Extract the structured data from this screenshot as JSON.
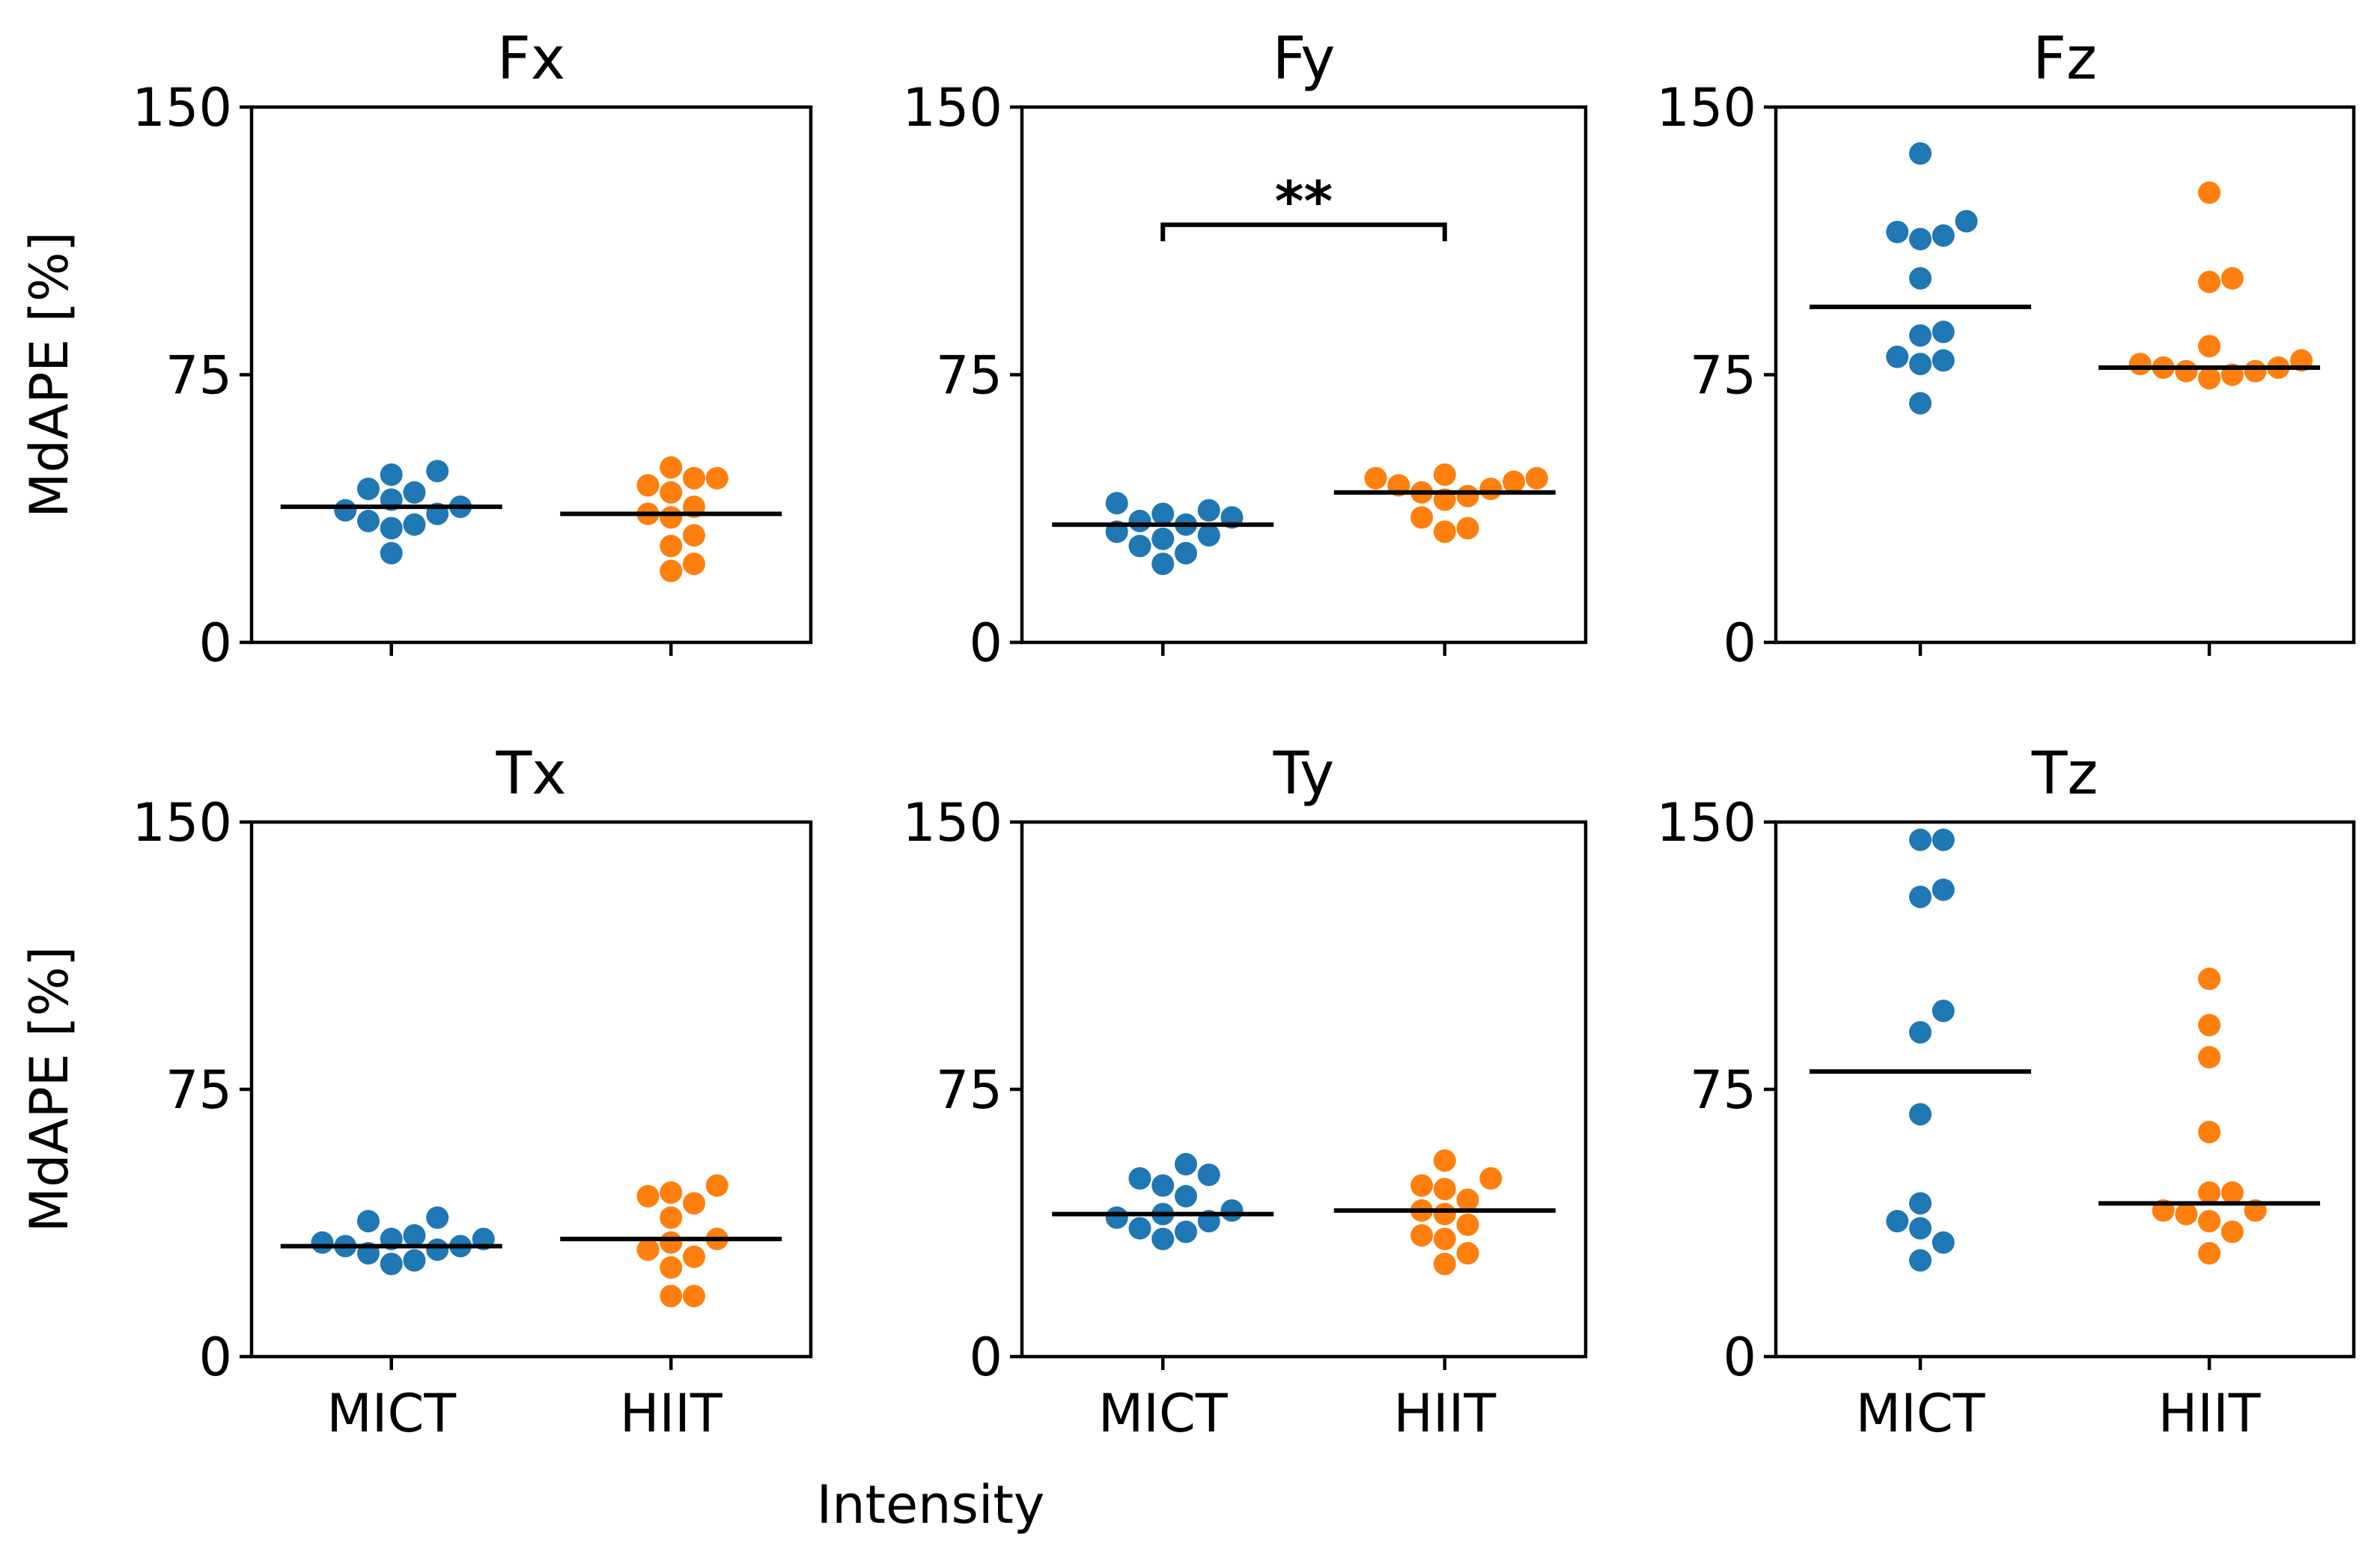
{
  "chart_data": {
    "type": "scatter",
    "subtype": "swarm",
    "xlabel": "Intensity",
    "ylabel": "MdAPE [%]",
    "ylim": [
      0,
      150
    ],
    "yticks": [
      0,
      75,
      150
    ],
    "categories": [
      "MICT",
      "HIIT"
    ],
    "colors": {
      "MICT": "#1f77b4",
      "HIIT": "#ff7f0e"
    },
    "panels": [
      {
        "title": "Fx",
        "series": [
          {
            "name": "MICT",
            "median": 38,
            "values": [
              25,
              32,
              33,
              34,
              36,
              37,
              38,
              40,
              42,
              43,
              47,
              48
            ]
          },
          {
            "name": "HIIT",
            "median": 36,
            "values": [
              20,
              22,
              27,
              30,
              35,
              36,
              38,
              42,
              44,
              46,
              46,
              49
            ]
          }
        ]
      },
      {
        "title": "Fy",
        "significance": {
          "label": "**",
          "level": 117
        },
        "series": [
          {
            "name": "MICT",
            "median": 33,
            "values": [
              22,
              25,
              27,
              29,
              30,
              31,
              33,
              34,
              35,
              36,
              37,
              39
            ]
          },
          {
            "name": "HIIT",
            "median": 42,
            "values": [
              31,
              32,
              35,
              40,
              41,
              42,
              43,
              44,
              45,
              46,
              46,
              47
            ]
          }
        ]
      },
      {
        "title": "Fz",
        "series": [
          {
            "name": "MICT",
            "median": 94,
            "values": [
              67,
              78,
              79,
              80,
              86,
              87,
              102,
              113,
              114,
              115,
              118,
              137
            ]
          },
          {
            "name": "HIIT",
            "median": 77,
            "values": [
              74,
              75,
              76,
              76,
              77,
              77,
              78,
              79,
              83,
              101,
              102,
              126
            ]
          }
        ]
      },
      {
        "title": "Tx",
        "series": [
          {
            "name": "MICT",
            "median": 31,
            "values": [
              26,
              27,
              29,
              30,
              31,
              31,
              32,
              33,
              33,
              34,
              38,
              39
            ]
          },
          {
            "name": "HIIT",
            "median": 33,
            "values": [
              17,
              17,
              25,
              28,
              30,
              32,
              33,
              39,
              43,
              45,
              46,
              48
            ]
          }
        ]
      },
      {
        "title": "Ty",
        "series": [
          {
            "name": "MICT",
            "median": 40,
            "values": [
              33,
              35,
              36,
              38,
              39,
              40,
              41,
              45,
              48,
              50,
              51,
              54
            ]
          },
          {
            "name": "HIIT",
            "median": 41,
            "values": [
              26,
              29,
              33,
              34,
              37,
              40,
              41,
              44,
              47,
              48,
              50,
              55
            ]
          }
        ]
      },
      {
        "title": "Tz",
        "series": [
          {
            "name": "MICT",
            "median": 80,
            "values": [
              27,
              32,
              36,
              38,
              43,
              68,
              91,
              97,
              129,
              131,
              145,
              145
            ]
          },
          {
            "name": "HIIT",
            "median": 43,
            "values": [
              29,
              35,
              38,
              40,
              41,
              41,
              46,
              46,
              63,
              84,
              93,
              106
            ]
          }
        ]
      }
    ]
  }
}
